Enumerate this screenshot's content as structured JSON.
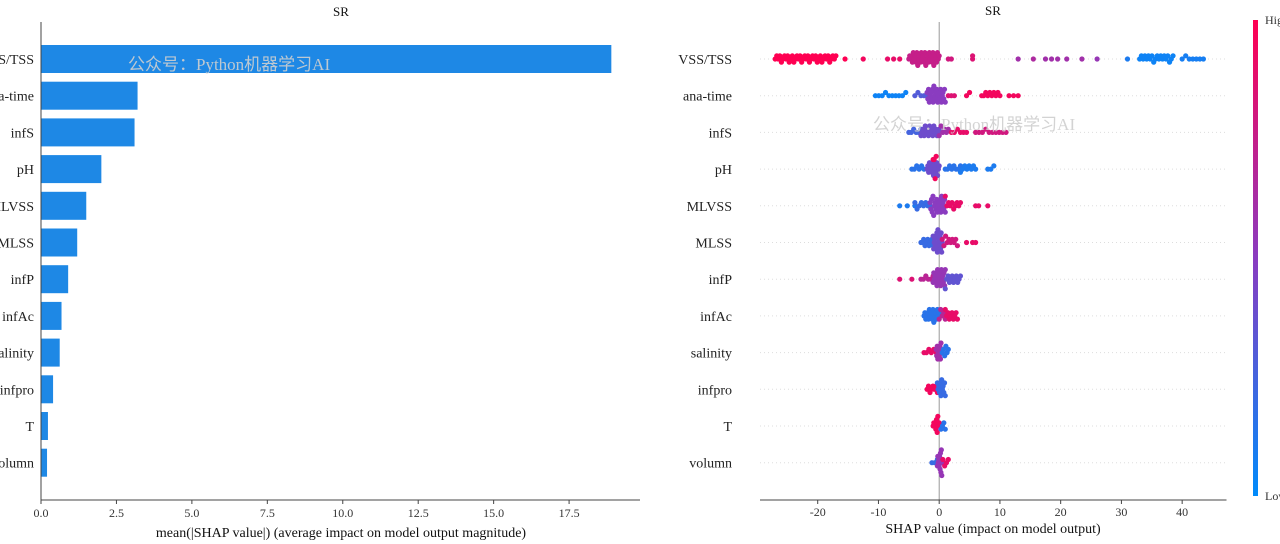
{
  "watermark": "公众号：Python机器学习AI",
  "colors": {
    "bar": "#1e88e5",
    "low": "#008bfb",
    "high": "#ff0052",
    "axis": "#333333",
    "grid": "#cccccc"
  },
  "chart_data": [
    {
      "type": "bar",
      "orientation": "horizontal",
      "title": "SR",
      "xlabel": "mean(|SHAP value|) (average impact on model output magnitude)",
      "ylabel": "",
      "xlim": [
        0,
        19.85
      ],
      "xticks": [
        "0.0",
        "2.5",
        "5.0",
        "7.5",
        "10.0",
        "12.5",
        "15.0",
        "17.5"
      ],
      "xtick_values": [
        0,
        2.5,
        5,
        7.5,
        10,
        12.5,
        15,
        17.5
      ],
      "categories": [
        "VSS/TSS",
        "ana-time",
        "infS",
        "pH",
        "MLVSS",
        "MLSS",
        "infP",
        "infAc",
        "salinity",
        "infpro",
        "T",
        "volumn"
      ],
      "values": [
        18.9,
        3.2,
        3.1,
        2.0,
        1.5,
        1.2,
        0.9,
        0.68,
        0.62,
        0.4,
        0.23,
        0.2
      ]
    },
    {
      "type": "scatter",
      "subtype": "beeswarm",
      "title": "SR",
      "xlabel": "SHAP value (impact on model output)",
      "xlim": [
        -29.5,
        47.3
      ],
      "xticks": [
        "-20",
        "-10",
        "0",
        "10",
        "20",
        "30",
        "40"
      ],
      "xtick_values": [
        -20,
        -10,
        0,
        10,
        20,
        30,
        40
      ],
      "colorbar": {
        "high_label": "High",
        "low_label": "Low"
      },
      "point_format": "[shap_from, shap_to, count, feature_value_0to1]",
      "features": [
        {
          "name": "VSS/TSS",
          "points": [
            [
              -27,
              -17,
              40,
              1.0
            ],
            [
              -15.5,
              -15.5,
              1,
              1
            ],
            [
              -12.5,
              -12.5,
              1,
              0.95
            ],
            [
              -8.5,
              -6.5,
              3,
              0.9
            ],
            [
              -5,
              0,
              35,
              0.75
            ],
            [
              1.5,
              2,
              2,
              0.8
            ],
            [
              5.5,
              5.5,
              2,
              0.85
            ],
            [
              13,
              13,
              1,
              0.6
            ],
            [
              15.5,
              15.5,
              1,
              0.65
            ],
            [
              17.5,
              19.5,
              3,
              0.6
            ],
            [
              21,
              21,
              1,
              0.6
            ],
            [
              23.5,
              23.5,
              1,
              0.6
            ],
            [
              26,
              26,
              1,
              0.55
            ],
            [
              31,
              31,
              1,
              0.1
            ],
            [
              33,
              38.5,
              20,
              0.05
            ],
            [
              40,
              43.5,
              7,
              0.08
            ]
          ]
        },
        {
          "name": "ana-time",
          "points": [
            [
              -10.5,
              -5.5,
              10,
              0.05
            ],
            [
              -4,
              -2,
              5,
              0.3
            ],
            [
              -2,
              1,
              25,
              0.5
            ],
            [
              1.5,
              2.5,
              3,
              0.85
            ],
            [
              4.5,
              5,
              2,
              0.95
            ],
            [
              7,
              10,
              10,
              0.95
            ],
            [
              11.5,
              13,
              3,
              0.95
            ]
          ]
        },
        {
          "name": "infS",
          "points": [
            [
              -5,
              -3,
              6,
              0.25
            ],
            [
              -3,
              0,
              18,
              0.4
            ],
            [
              0,
              1.5,
              6,
              0.6
            ],
            [
              2,
              4.5,
              6,
              0.9
            ],
            [
              6,
              11,
              10,
              0.8
            ]
          ]
        },
        {
          "name": "pH",
          "points": [
            [
              -4.5,
              -2.5,
              6,
              0.15
            ],
            [
              -2,
              0,
              16,
              0.4
            ],
            [
              -1,
              -0.5,
              4,
              0.95
            ],
            [
              1,
              3.5,
              8,
              0.15
            ],
            [
              3.5,
              6,
              8,
              0.1
            ],
            [
              8,
              9,
              3,
              0.1
            ]
          ]
        },
        {
          "name": "MLVSS",
          "points": [
            [
              -6.5,
              -4,
              3,
              0.1
            ],
            [
              -4,
              -1.5,
              8,
              0.2
            ],
            [
              -1.5,
              1,
              22,
              0.5
            ],
            [
              1,
              3.5,
              10,
              0.9
            ],
            [
              6,
              6.5,
              2,
              0.9
            ],
            [
              8,
              8,
              1,
              0.9
            ]
          ]
        },
        {
          "name": "MLSS",
          "points": [
            [
              -3,
              -1,
              10,
              0.2
            ],
            [
              -1,
              0.5,
              18,
              0.4
            ],
            [
              0.5,
              3,
              10,
              0.8
            ],
            [
              4.5,
              4.5,
              1,
              0.9
            ],
            [
              5.5,
              6,
              2,
              0.9
            ]
          ]
        },
        {
          "name": "infP",
          "points": [
            [
              -6.5,
              -6.5,
              1,
              0.85
            ],
            [
              -4.5,
              -4.5,
              1,
              0.85
            ],
            [
              -3,
              -1,
              6,
              0.7
            ],
            [
              -1,
              1,
              20,
              0.55
            ],
            [
              1,
              3.5,
              12,
              0.35
            ]
          ]
        },
        {
          "name": "infAc",
          "points": [
            [
              -2.5,
              0,
              18,
              0.15
            ],
            [
              0,
              1,
              5,
              0.7
            ],
            [
              1,
              3,
              10,
              0.9
            ]
          ]
        },
        {
          "name": "salinity",
          "points": [
            [
              -2.5,
              -0.5,
              6,
              0.9
            ],
            [
              -0.5,
              0.3,
              10,
              0.6
            ],
            [
              0.5,
              1.5,
              6,
              0.15
            ]
          ]
        },
        {
          "name": "infpro",
          "points": [
            [
              -2,
              -0.3,
              8,
              0.95
            ],
            [
              -0.3,
              1,
              12,
              0.2
            ]
          ]
        },
        {
          "name": "T",
          "points": [
            [
              -1,
              0,
              10,
              0.95
            ],
            [
              0.3,
              1,
              4,
              0.15
            ]
          ]
        },
        {
          "name": "volumn",
          "points": [
            [
              -1.2,
              -0.3,
              3,
              0.2
            ],
            [
              -0.3,
              0.5,
              12,
              0.55
            ],
            [
              0.6,
              1.5,
              4,
              0.9
            ]
          ]
        }
      ]
    }
  ]
}
